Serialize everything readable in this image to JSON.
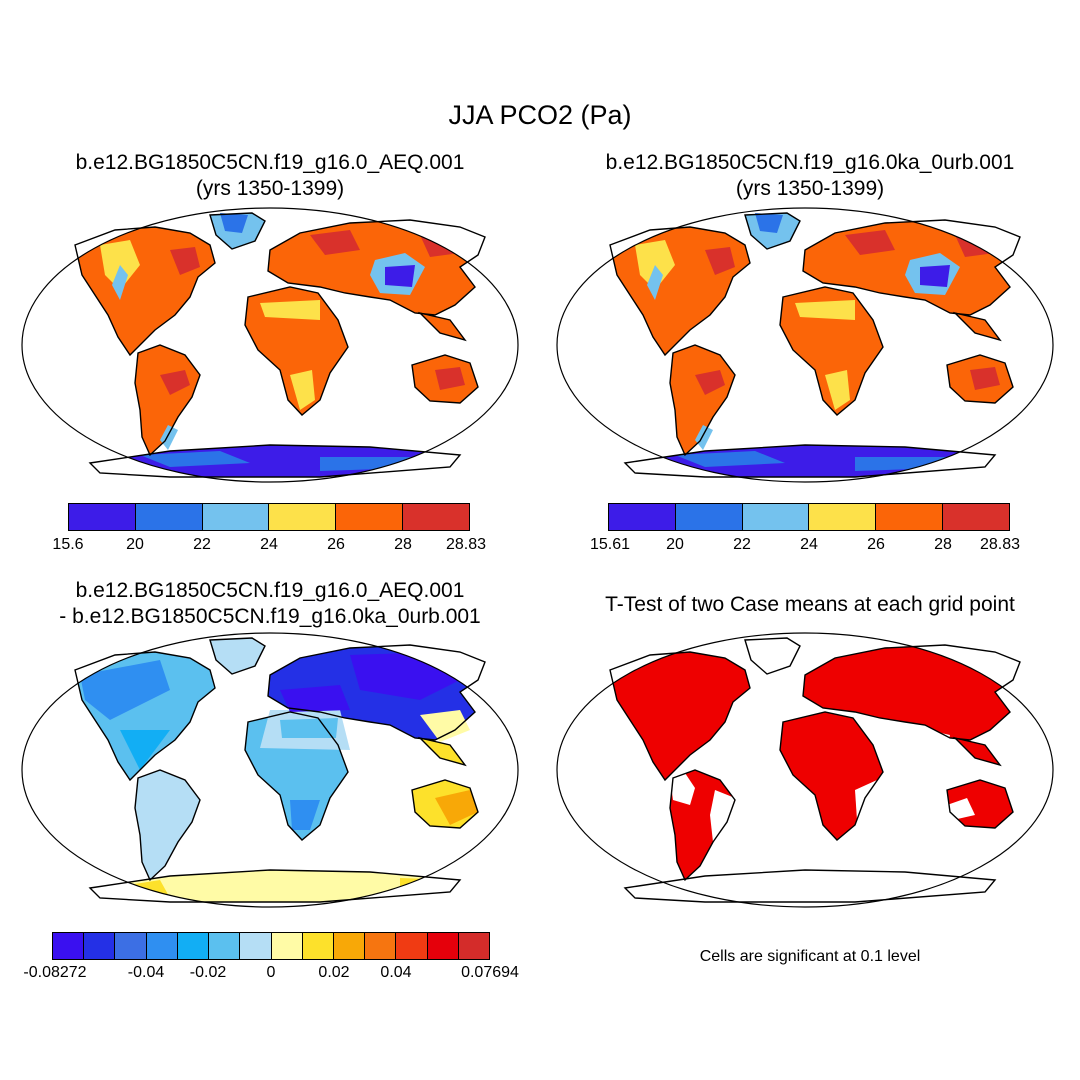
{
  "title": "JJA PCO2 (Pa)",
  "panels": [
    {
      "title": [
        "b.e12.BG1850C5CN.f19_g16.0_AEQ.001",
        "(yrs 1350-1399)"
      ],
      "colors": [
        "#3d1ce8",
        "#2b73e8",
        "#74c2ee",
        "#fde14a",
        "#fb6508",
        "#d9312b"
      ],
      "ticks": [
        "15.6",
        "20",
        "22",
        "24",
        "26",
        "28",
        "28.83"
      ]
    },
    {
      "title": [
        "b.e12.BG1850C5CN.f19_g16.0ka_0urb.001",
        "(yrs 1350-1399)"
      ],
      "colors": [
        "#3d1ce8",
        "#2b73e8",
        "#74c2ee",
        "#fde14a",
        "#fb6508",
        "#d9312b"
      ],
      "ticks": [
        "15.61",
        "20",
        "22",
        "24",
        "26",
        "28",
        "28.83"
      ]
    },
    {
      "title": [
        "b.e12.BG1850C5CN.f19_g16.0_AEQ.001",
        "- b.e12.BG1850C5CN.f19_g16.0ka_0urb.001"
      ],
      "colors": [
        "#3a10f0",
        "#2430e6",
        "#3c6fe4",
        "#2f8ff1",
        "#12aef4",
        "#5bc0ef",
        "#b5def5",
        "#fffba6",
        "#fde12b",
        "#f8a807",
        "#f67510",
        "#f03b13",
        "#e5000b",
        "#d42c2a"
      ],
      "ticks": [
        "-0.08272",
        "-0.04",
        "-0.02",
        "0",
        "0.02",
        "0.04",
        "0.07694"
      ]
    },
    {
      "title": [
        "T-Test of two Case means at each grid point"
      ],
      "note": "Cells are significant at 0.1 level"
    }
  ],
  "legend_colors": {
    "ttest_significant": "#ee0000"
  }
}
